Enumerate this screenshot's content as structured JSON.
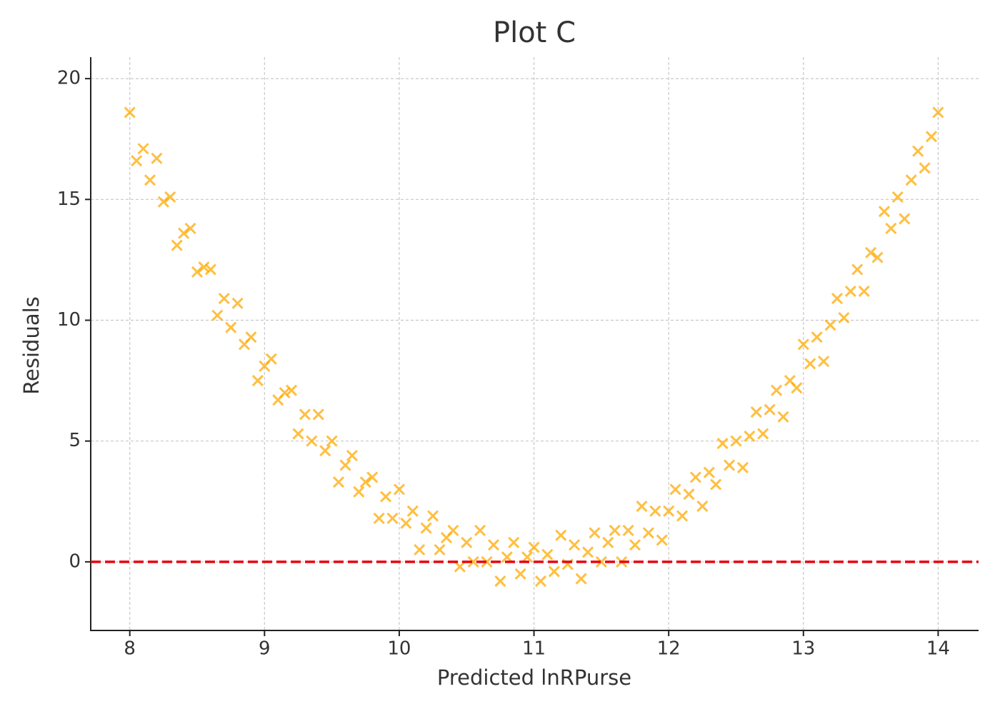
{
  "chart_data": {
    "type": "scatter",
    "title": "Plot C",
    "x_label": "Predicted lnRPurse",
    "y_label": "Residuals",
    "marker": "x",
    "color": "#ffaa00",
    "grid": true,
    "hline": {
      "value": 0,
      "color": "#e8000b",
      "style": "dashed"
    },
    "xlim": [
      7.71,
      14.3
    ],
    "ylim": [
      -2.84,
      20.89
    ],
    "xticks": [
      8,
      9,
      10,
      11,
      12,
      13,
      14
    ],
    "yticks": [
      0,
      5,
      10,
      15,
      20
    ],
    "x": [
      8.0,
      8.05,
      8.1,
      8.15,
      8.2,
      8.25,
      8.3,
      8.35,
      8.4,
      8.45,
      8.5,
      8.55,
      8.6,
      8.65,
      8.7,
      8.75,
      8.8,
      8.85,
      8.9,
      8.95,
      9.0,
      9.05,
      9.1,
      9.15,
      9.2,
      9.25,
      9.3,
      9.35,
      9.4,
      9.45,
      9.5,
      9.55,
      9.6,
      9.65,
      9.7,
      9.75,
      9.8,
      9.85,
      9.9,
      9.95,
      10.0,
      10.05,
      10.1,
      10.15,
      10.2,
      10.25,
      10.3,
      10.35,
      10.4,
      10.45,
      10.5,
      10.55,
      10.6,
      10.65,
      10.7,
      10.75,
      10.8,
      10.85,
      10.9,
      10.95,
      11.0,
      11.05,
      11.1,
      11.15,
      11.2,
      11.25,
      11.3,
      11.35,
      11.4,
      11.45,
      11.5,
      11.55,
      11.6,
      11.65,
      11.7,
      11.75,
      11.8,
      11.85,
      11.9,
      11.95,
      12.0,
      12.05,
      12.1,
      12.15,
      12.2,
      12.25,
      12.3,
      12.35,
      12.4,
      12.45,
      12.5,
      12.55,
      12.6,
      12.65,
      12.7,
      12.75,
      12.8,
      12.85,
      12.9,
      12.95,
      13.0,
      13.05,
      13.1,
      13.15,
      13.2,
      13.25,
      13.3,
      13.35,
      13.4,
      13.45,
      13.5,
      13.55,
      13.6,
      13.65,
      13.7,
      13.75,
      13.8,
      13.85,
      13.9,
      13.95,
      14.0
    ],
    "values": [
      18.6,
      16.6,
      17.1,
      15.8,
      16.7,
      14.9,
      15.1,
      13.1,
      13.6,
      13.8,
      12.0,
      12.2,
      12.1,
      10.2,
      10.9,
      9.7,
      10.7,
      9.0,
      9.3,
      7.5,
      8.1,
      8.4,
      6.7,
      7.0,
      7.1,
      5.3,
      6.1,
      5.0,
      6.1,
      4.6,
      5.0,
      3.3,
      4.0,
      4.4,
      2.9,
      3.3,
      3.5,
      1.8,
      2.7,
      1.8,
      3.0,
      1.6,
      2.1,
      0.5,
      1.4,
      1.9,
      0.5,
      1.0,
      1.3,
      -0.2,
      0.8,
      0.0,
      1.3,
      0.0,
      0.7,
      -0.8,
      0.2,
      0.8,
      -0.5,
      0.2,
      0.6,
      -0.8,
      0.3,
      -0.4,
      1.1,
      -0.1,
      0.7,
      -0.7,
      0.4,
      1.2,
      0.0,
      0.8,
      1.3,
      0.0,
      1.3,
      0.7,
      2.3,
      1.2,
      2.1,
      0.9,
      2.1,
      3.0,
      1.9,
      2.8,
      3.5,
      2.3,
      3.7,
      3.2,
      4.9,
      4.0,
      5.0,
      3.9,
      5.2,
      6.2,
      5.3,
      6.3,
      7.1,
      6.0,
      7.5,
      7.2,
      9.0,
      8.2,
      9.3,
      8.3,
      9.8,
      10.9,
      10.1,
      11.2,
      12.1,
      11.2,
      12.8,
      12.6,
      14.5,
      13.8,
      15.1,
      14.2,
      15.8,
      17.0,
      16.3,
      17.6,
      18.6
    ]
  }
}
